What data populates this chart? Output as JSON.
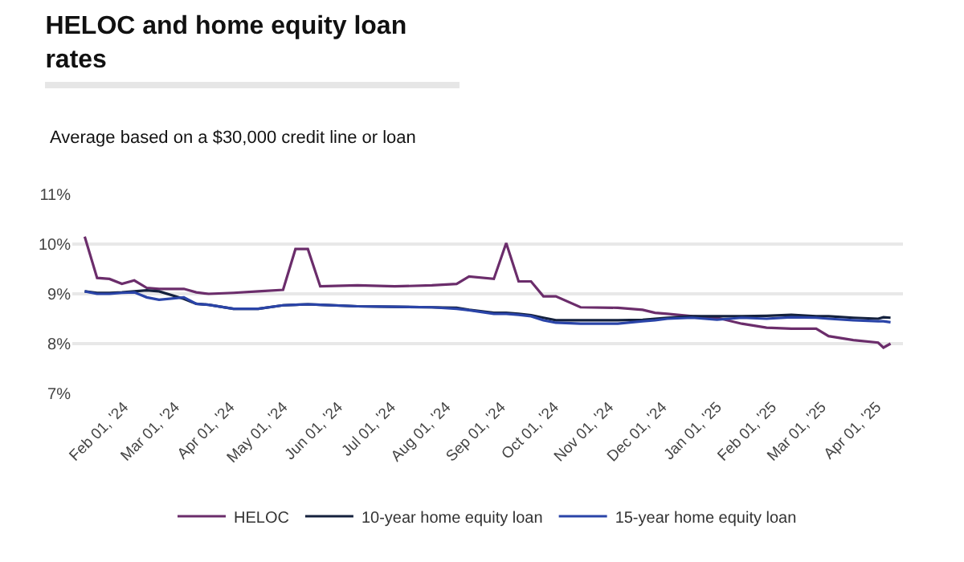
{
  "chart_data": {
    "type": "line",
    "title": "HELOC and home equity loan rates",
    "subtitle": "Average based on a $30,000 credit line or loan",
    "x": [
      "2024-01-10",
      "2024-01-17",
      "2024-01-24",
      "2024-01-31",
      "2024-02-07",
      "2024-02-14",
      "2024-02-21",
      "2024-03-06",
      "2024-03-13",
      "2024-03-20",
      "2024-04-03",
      "2024-04-17",
      "2024-05-01",
      "2024-05-08",
      "2024-05-15",
      "2024-05-22",
      "2024-06-12",
      "2024-07-03",
      "2024-07-24",
      "2024-08-07",
      "2024-08-14",
      "2024-08-28",
      "2024-09-04",
      "2024-09-11",
      "2024-09-18",
      "2024-09-25",
      "2024-10-02",
      "2024-10-16",
      "2024-11-06",
      "2024-11-20",
      "2024-11-27",
      "2024-12-04",
      "2024-12-18",
      "2025-01-01",
      "2025-01-15",
      "2025-01-29",
      "2025-02-12",
      "2025-02-26",
      "2025-03-05",
      "2025-03-19",
      "2025-04-02",
      "2025-04-05",
      "2025-04-09"
    ],
    "series": [
      {
        "name": "HELOC",
        "color": "#6b2d6b",
        "values": [
          10.15,
          9.32,
          9.3,
          9.2,
          9.27,
          9.12,
          9.1,
          9.1,
          9.03,
          9.0,
          9.02,
          9.05,
          9.08,
          9.9,
          9.9,
          9.15,
          9.17,
          9.15,
          9.17,
          9.2,
          9.35,
          9.3,
          10.02,
          9.25,
          9.25,
          8.95,
          8.95,
          8.73,
          8.72,
          8.68,
          8.62,
          8.6,
          8.55,
          8.52,
          8.4,
          8.32,
          8.3,
          8.3,
          8.15,
          8.07,
          8.02,
          7.92,
          8.0
        ]
      },
      {
        "name": "10-year home equity loan",
        "color": "#14213d",
        "values": [
          9.05,
          9.02,
          9.02,
          9.03,
          9.05,
          9.07,
          9.05,
          8.9,
          8.8,
          8.78,
          8.7,
          8.7,
          8.77,
          8.78,
          8.79,
          8.78,
          8.75,
          8.74,
          8.73,
          8.72,
          8.68,
          8.62,
          8.62,
          8.6,
          8.57,
          8.52,
          8.47,
          8.47,
          8.47,
          8.48,
          8.5,
          8.52,
          8.55,
          8.55,
          8.55,
          8.56,
          8.58,
          8.55,
          8.55,
          8.52,
          8.5,
          8.53,
          8.52
        ]
      },
      {
        "name": "15-year home equity loan",
        "color": "#2a44a8",
        "values": [
          9.05,
          9.0,
          9.0,
          9.02,
          9.03,
          8.93,
          8.88,
          8.93,
          8.8,
          8.78,
          8.7,
          8.7,
          8.77,
          8.78,
          8.79,
          8.78,
          8.75,
          8.74,
          8.73,
          8.7,
          8.67,
          8.6,
          8.6,
          8.58,
          8.55,
          8.47,
          8.42,
          8.4,
          8.4,
          8.45,
          8.47,
          8.5,
          8.52,
          8.48,
          8.52,
          8.5,
          8.53,
          8.52,
          8.5,
          8.47,
          8.45,
          8.45,
          8.43
        ]
      }
    ],
    "xlim": [
      "2024-01-03",
      "2025-04-16"
    ],
    "xticks": [
      {
        "value": "2024-02-01",
        "label": "Feb 01, '24"
      },
      {
        "value": "2024-03-01",
        "label": "Mar 01, '24"
      },
      {
        "value": "2024-04-01",
        "label": "Apr 01, '24"
      },
      {
        "value": "2024-05-01",
        "label": "May 01, '24"
      },
      {
        "value": "2024-06-01",
        "label": "Jun 01, '24"
      },
      {
        "value": "2024-07-01",
        "label": "Jul 01, '24"
      },
      {
        "value": "2024-08-01",
        "label": "Aug 01, '24"
      },
      {
        "value": "2024-09-01",
        "label": "Sep 01, '24"
      },
      {
        "value": "2024-10-01",
        "label": "Oct 01, '24"
      },
      {
        "value": "2024-11-01",
        "label": "Nov 01, '24"
      },
      {
        "value": "2024-12-01",
        "label": "Dec 01, '24"
      },
      {
        "value": "2025-01-01",
        "label": "Jan 01, '25"
      },
      {
        "value": "2025-02-01",
        "label": "Feb 01, '25"
      },
      {
        "value": "2025-03-01",
        "label": "Mar 01, '25"
      },
      {
        "value": "2025-04-01",
        "label": "Apr 01, '25"
      }
    ],
    "ylim": [
      7,
      11
    ],
    "yticks": [
      {
        "value": 7,
        "label": "7%"
      },
      {
        "value": 8,
        "label": "8%"
      },
      {
        "value": 9,
        "label": "9%"
      },
      {
        "value": 10,
        "label": "10%"
      },
      {
        "value": 11,
        "label": "11%"
      }
    ],
    "grid": "y",
    "legend": "bottom",
    "marker": "none",
    "line_style": "solid"
  }
}
